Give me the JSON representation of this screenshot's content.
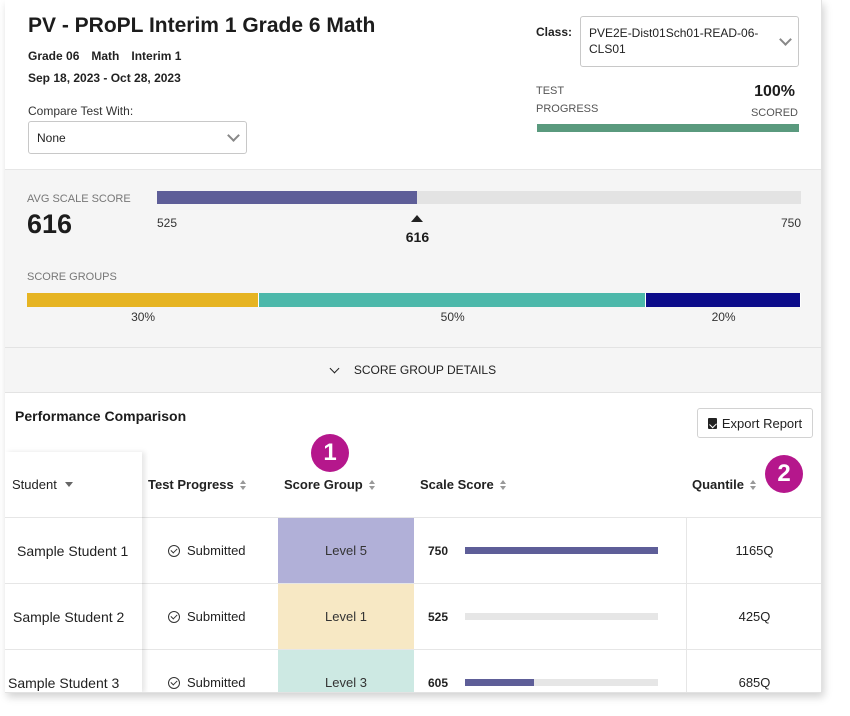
{
  "header": {
    "title": "PV - PRoPL Interim 1 Grade 6 Math",
    "grade": "Grade 06",
    "subject": "Math",
    "assessment": "Interim 1",
    "date_range": "Sep 18, 2023 - Oct 28, 2023",
    "compare_label": "Compare Test With:",
    "compare_value": "None",
    "class_label": "Class:",
    "class_value": "PVE2E-Dist01Sch01-READ-06-CLS01",
    "progress_label": "TEST PROGRESS",
    "progress_value": "100%",
    "progress_scored": "SCORED",
    "progress_fraction": 1.0,
    "progress_color": "#5a9a7e"
  },
  "avg": {
    "label": "AVG SCALE SCORE",
    "value": "616",
    "min": "525",
    "max": "750",
    "marker_label": "616",
    "min_num": 525,
    "max_num": 750,
    "value_num": 616,
    "fill_color": "#5e5e98"
  },
  "score_groups": {
    "label": "SCORE GROUPS",
    "groups": [
      {
        "pct": "30%",
        "fraction": 0.3,
        "color": "#e6b422"
      },
      {
        "pct": "50%",
        "fraction": 0.5,
        "color": "#4cb8aa"
      },
      {
        "pct": "20%",
        "fraction": 0.2,
        "color": "#0c0c8a"
      }
    ]
  },
  "details_toggle": "SCORE GROUP DETAILS",
  "performance": {
    "title": "Performance Comparison",
    "export_label": "Export Report",
    "columns": {
      "student": "Student",
      "test_progress": "Test Progress",
      "score_group": "Score Group",
      "scale_score": "Scale Score",
      "quantile": "Quantile"
    },
    "badges": [
      "1",
      "2"
    ],
    "scale_min": 525,
    "scale_max": 750,
    "rows": [
      {
        "student": "Sample Student 1",
        "status": "Submitted",
        "group": "Level 5",
        "group_color": "#b1b0d8",
        "score": "750",
        "score_num": 750,
        "quantile": "1165Q"
      },
      {
        "student": "Sample Student 2",
        "status": "Submitted",
        "group": "Level 1",
        "group_color": "#f7e8c4",
        "score": "525",
        "score_num": 525,
        "quantile": "425Q"
      },
      {
        "student": "Sample Student 3",
        "status": "Submitted",
        "group": "Level 3",
        "group_color": "#cde9e3",
        "score": "605",
        "score_num": 605,
        "quantile": "685Q"
      }
    ]
  }
}
